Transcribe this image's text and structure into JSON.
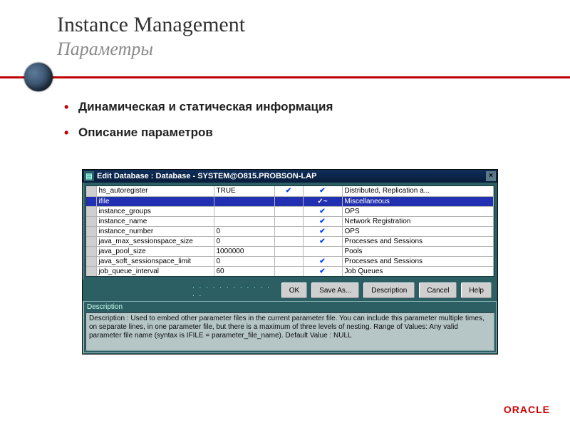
{
  "title": "Instance Management",
  "subtitle": "Параметры",
  "bullets": [
    "Динамическая и статическая информация",
    "Описание параметров"
  ],
  "window": {
    "title": "Edit Database : Database - SYSTEM@O815.PROBSON-LAP",
    "rows": [
      {
        "name": "hs_autoregister",
        "value": "TRUE",
        "c1": "✔",
        "c2": "✔",
        "category": "Distributed, Replication a...",
        "selected": false
      },
      {
        "name": "ifile",
        "value": "",
        "c1": "",
        "c2": "✓~",
        "category": "Miscellaneous",
        "selected": true
      },
      {
        "name": "instance_groups",
        "value": "",
        "c1": "",
        "c2": "✔",
        "category": "OPS",
        "selected": false
      },
      {
        "name": "instance_name",
        "value": "",
        "c1": "",
        "c2": "✔",
        "category": "Network Registration",
        "selected": false
      },
      {
        "name": "instance_number",
        "value": "0",
        "c1": "",
        "c2": "✔",
        "category": "OPS",
        "selected": false
      },
      {
        "name": "java_max_sessionspace_size",
        "value": "0",
        "c1": "",
        "c2": "✔",
        "category": "Processes and Sessions",
        "selected": false
      },
      {
        "name": "java_pool_size",
        "value": "1000000",
        "c1": "",
        "c2": "",
        "category": "Pools",
        "selected": false
      },
      {
        "name": "java_soft_sessionspace_limit",
        "value": "0",
        "c1": "",
        "c2": "✔",
        "category": "Processes and Sessions",
        "selected": false
      },
      {
        "name": "job_queue_interval",
        "value": "60",
        "c1": "",
        "c2": "✔",
        "category": "Job Queues",
        "selected": false
      }
    ],
    "buttons": {
      "ok": "OK",
      "saveas": "Save As...",
      "description": "Description",
      "cancel": "Cancel",
      "help": "Help"
    },
    "description_label": "Description",
    "description_text": "Description   : Used to embed other parameter files in the current parameter file. You can include this parameter multiple times, on separate lines, in one parameter file, but there is a maximum of three levels of nesting.\nRange of Values: Any valid parameter file name (syntax is IFILE = parameter_file_name).\nDefault Value  : NULL"
  },
  "footer_logo": "ORACLE"
}
